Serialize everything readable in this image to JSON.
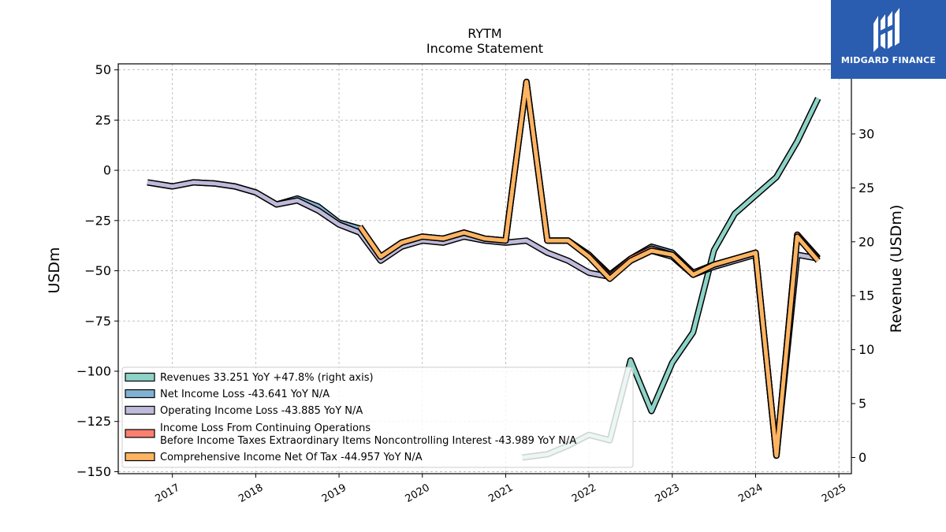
{
  "chart_data": {
    "type": "line",
    "title": "RYTM",
    "subtitle": "Income Statement",
    "ylabel": "USDm",
    "y2label": "Revenue (USDm)",
    "ylim": [
      -151,
      53
    ],
    "y2lim": [
      -1.5,
      36.5
    ],
    "yticks": [
      50,
      25,
      0,
      -25,
      -50,
      -75,
      -100,
      -125,
      -150
    ],
    "y2ticks": [
      30,
      25,
      20,
      15,
      10,
      5,
      0
    ],
    "xlim": [
      2016.35,
      2025.15
    ],
    "xticks": [
      "2017",
      "2018",
      "2019",
      "2020",
      "2021",
      "2022",
      "2023",
      "2024",
      "2025"
    ],
    "grid": true,
    "legend_position": "lower-left",
    "series": [
      {
        "name": "Revenues  33.251 YoY +47.8% (right axis)",
        "axis": "right",
        "color": "#8dd3c7",
        "x": [
          2021.2,
          2021.5,
          2021.75,
          2022.0,
          2022.25,
          2022.5,
          2022.75,
          2023.0,
          2023.25,
          2023.5,
          2023.75,
          2024.0,
          2024.25,
          2024.5,
          2024.75
        ],
        "values": [
          0.0,
          0.3,
          1.1,
          2.1,
          1.6,
          9.0,
          4.3,
          8.8,
          11.6,
          19.2,
          22.6,
          24.3,
          26.0,
          29.3,
          33.3
        ]
      },
      {
        "name": "Net Income Loss  -43.641 YoY N/A",
        "axis": "left",
        "color": "#80b1d3",
        "x": [
          2016.7,
          2017.0,
          2017.25,
          2017.5,
          2017.75,
          2018.0,
          2018.25,
          2018.5,
          2018.75,
          2019.0,
          2019.25,
          2019.5,
          2019.75,
          2020.0,
          2020.25,
          2020.5,
          2020.75,
          2021.0,
          2021.25,
          2021.5,
          2021.75,
          2022.0,
          2022.25,
          2022.5,
          2022.75,
          2023.0,
          2023.25,
          2023.5,
          2023.75,
          2024.0,
          2024.25,
          2024.5,
          2024.75
        ],
        "values": [
          -6,
          -8,
          -6,
          -6.5,
          -8,
          -11,
          -17,
          -14,
          -18,
          -26,
          -29,
          -43,
          -36,
          -33,
          -34,
          -31,
          -34,
          -35,
          44,
          -35,
          -35,
          -42,
          -52,
          -44,
          -38,
          -41,
          -51,
          -47,
          -44,
          -41,
          -142,
          -32,
          -43.6
        ]
      },
      {
        "name": "Operating Income Loss  -43.885 YoY N/A",
        "axis": "left",
        "color": "#bebada",
        "x": [
          2016.7,
          2017.0,
          2017.25,
          2017.5,
          2017.75,
          2018.0,
          2018.25,
          2018.5,
          2018.75,
          2019.0,
          2019.25,
          2019.5,
          2019.75,
          2020.0,
          2020.25,
          2020.5,
          2020.75,
          2021.0,
          2021.25,
          2021.5,
          2021.75,
          2022.0,
          2022.25,
          2022.5,
          2022.75,
          2023.0,
          2023.25,
          2023.5,
          2023.75,
          2024.0,
          2024.25,
          2024.5,
          2024.75
        ],
        "values": [
          -6,
          -8,
          -6,
          -6.5,
          -8,
          -11,
          -17,
          -15,
          -20,
          -27,
          -31,
          -45,
          -38,
          -35,
          -36,
          -33,
          -35,
          -36,
          -35,
          -41,
          -45,
          -51,
          -53,
          -45,
          -40,
          -43,
          -52,
          -48,
          -45,
          -42,
          -142,
          -42,
          -43.9
        ]
      },
      {
        "name": "Income Loss From Continuing Operations\nBefore Income Taxes Extraordinary Items Noncontrolling Interest  -43.989 YoY N/A",
        "axis": "left",
        "color": "#fb8072",
        "x": [
          2019.25,
          2019.5,
          2019.75,
          2020.0,
          2020.25,
          2020.5,
          2020.75,
          2021.0,
          2021.25,
          2021.5,
          2021.75,
          2022.0,
          2022.25,
          2022.5,
          2022.75,
          2023.0,
          2023.25,
          2023.5,
          2023.75,
          2024.0,
          2024.25,
          2024.5,
          2024.75
        ],
        "values": [
          -28,
          -43,
          -36,
          -33,
          -34,
          -31,
          -34,
          -35,
          44,
          -35,
          -35,
          -42,
          -53,
          -44,
          -39,
          -42,
          -51,
          -47,
          -44,
          -41,
          -142,
          -32,
          -44
        ]
      },
      {
        "name": "Comprehensive Income Net Of Tax  -44.957 YoY N/A",
        "axis": "left",
        "color": "#fdb462",
        "x": [
          2019.25,
          2019.5,
          2019.75,
          2020.0,
          2020.25,
          2020.5,
          2020.75,
          2021.0,
          2021.25,
          2021.5,
          2021.75,
          2022.0,
          2022.25,
          2022.5,
          2022.75,
          2023.0,
          2023.25,
          2023.5,
          2023.75,
          2024.0,
          2024.25,
          2024.5,
          2024.75
        ],
        "values": [
          -28,
          -43,
          -36,
          -33,
          -34,
          -31,
          -34,
          -35,
          44,
          -35,
          -35,
          -43,
          -54,
          -45,
          -40,
          -42,
          -52,
          -47,
          -44,
          -41,
          -142,
          -33,
          -45
        ]
      }
    ]
  },
  "logo": {
    "text": "MIDGARD FINANCE",
    "icon": "midgard-logo-icon"
  }
}
